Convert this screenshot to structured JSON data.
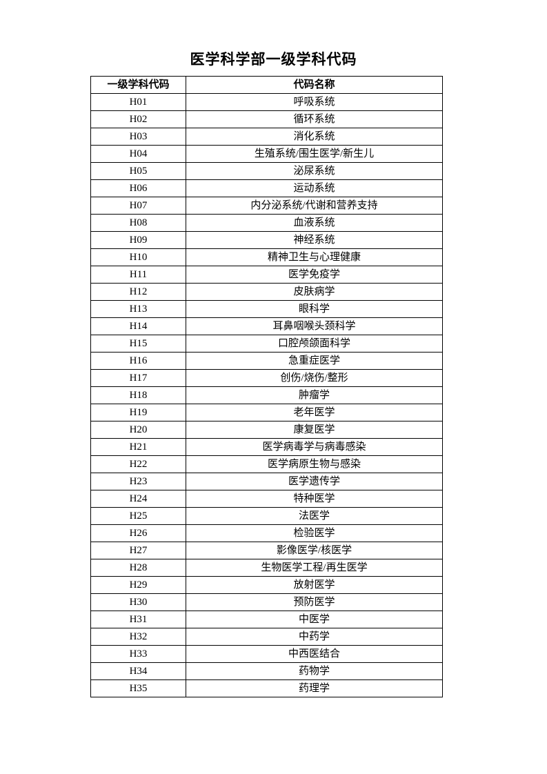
{
  "page": {
    "title": "医学科学部一级学科代码"
  },
  "table": {
    "headers": [
      "一级学科代码",
      "代码名称"
    ],
    "rows": [
      {
        "code": "H01",
        "name": "呼吸系统"
      },
      {
        "code": "H02",
        "name": "循环系统"
      },
      {
        "code": "H03",
        "name": "消化系统"
      },
      {
        "code": "H04",
        "name": "生殖系统/围生医学/新生儿"
      },
      {
        "code": "H05",
        "name": "泌尿系统"
      },
      {
        "code": "H06",
        "name": "运动系统"
      },
      {
        "code": "H07",
        "name": "内分泌系统/代谢和营养支持"
      },
      {
        "code": "H08",
        "name": "血液系统"
      },
      {
        "code": "H09",
        "name": "神经系统"
      },
      {
        "code": "H10",
        "name": "精神卫生与心理健康"
      },
      {
        "code": "H11",
        "name": "医学免疫学"
      },
      {
        "code": "H12",
        "name": "皮肤病学"
      },
      {
        "code": "H13",
        "name": "眼科学"
      },
      {
        "code": "H14",
        "name": "耳鼻咽喉头颈科学"
      },
      {
        "code": "H15",
        "name": "口腔颅颌面科学"
      },
      {
        "code": "H16",
        "name": "急重症医学"
      },
      {
        "code": "H17",
        "name": "创伤/烧伤/整形"
      },
      {
        "code": "H18",
        "name": "肿瘤学"
      },
      {
        "code": "H19",
        "name": "老年医学"
      },
      {
        "code": "H20",
        "name": "康复医学"
      },
      {
        "code": "H21",
        "name": "医学病毒学与病毒感染"
      },
      {
        "code": "H22",
        "name": "医学病原生物与感染"
      },
      {
        "code": "H23",
        "name": "医学遗传学"
      },
      {
        "code": "H24",
        "name": "特种医学"
      },
      {
        "code": "H25",
        "name": "法医学"
      },
      {
        "code": "H26",
        "name": "检验医学"
      },
      {
        "code": "H27",
        "name": "影像医学/核医学"
      },
      {
        "code": "H28",
        "name": "生物医学工程/再生医学"
      },
      {
        "code": "H29",
        "name": "放射医学"
      },
      {
        "code": "H30",
        "name": "预防医学"
      },
      {
        "code": "H31",
        "name": "中医学"
      },
      {
        "code": "H32",
        "name": "中药学"
      },
      {
        "code": "H33",
        "name": "中西医结合"
      },
      {
        "code": "H34",
        "name": "药物学"
      },
      {
        "code": "H35",
        "name": "药理学"
      }
    ]
  }
}
